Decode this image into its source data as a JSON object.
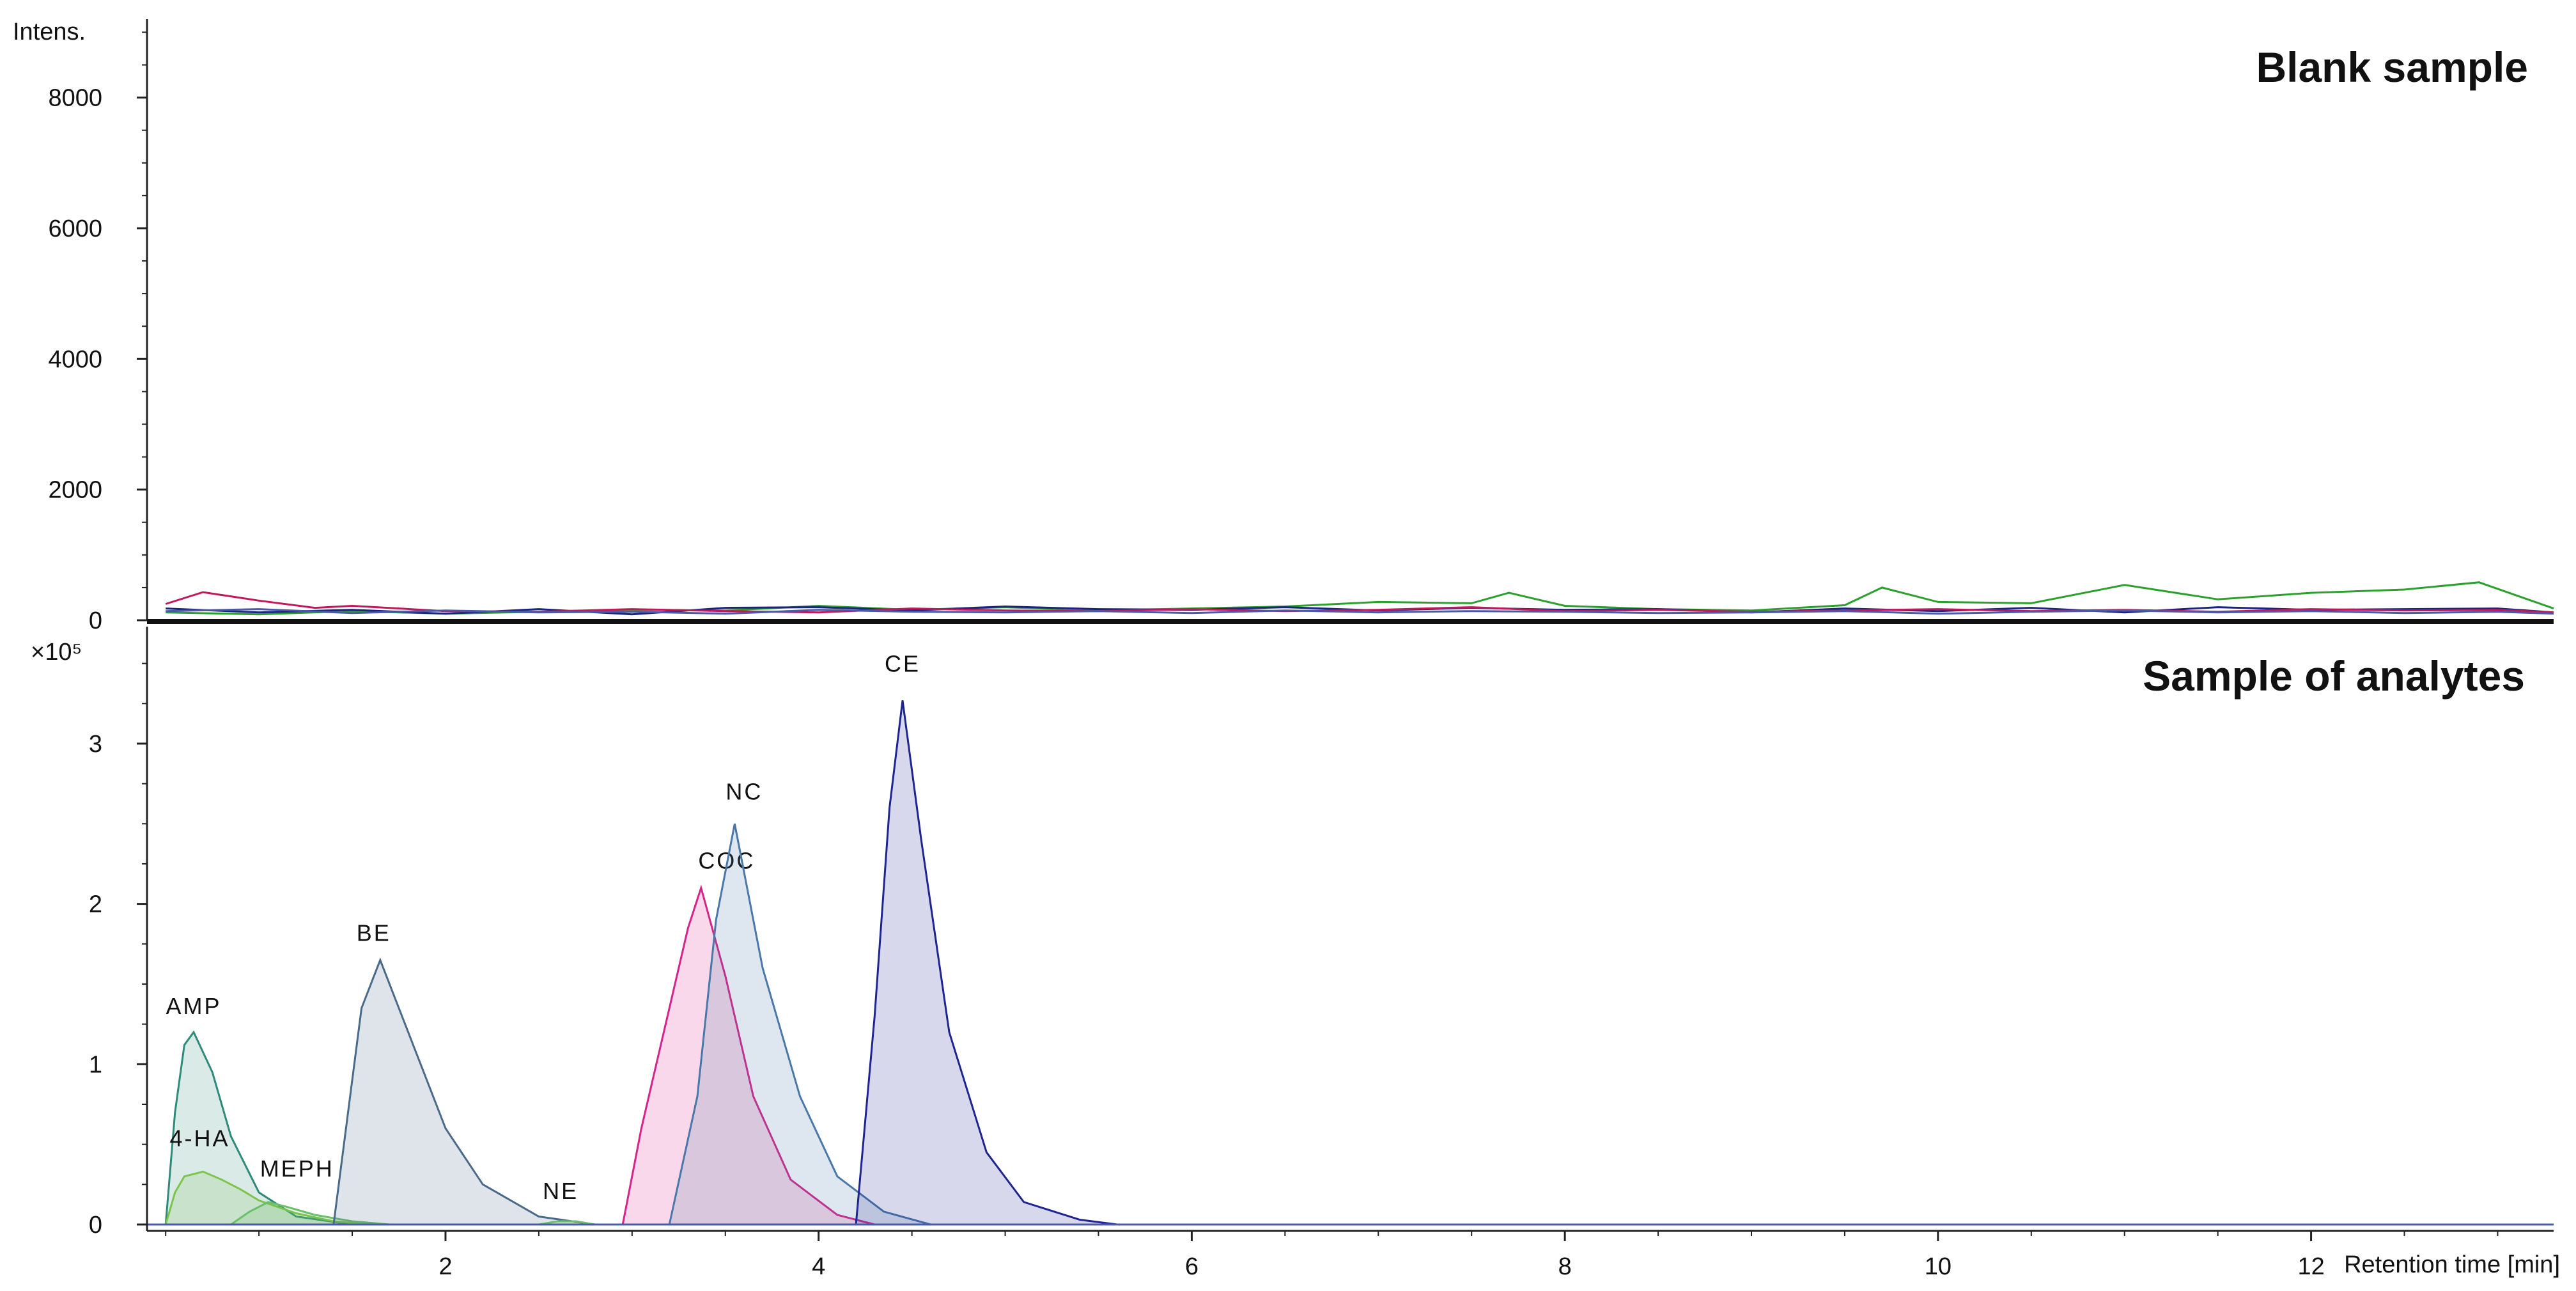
{
  "chart_data": [
    {
      "type": "line",
      "title": "Blank sample",
      "ylabel": "Intens.",
      "xlim": [
        0.4,
        13.3
      ],
      "ylim": [
        0,
        9200
      ],
      "yticks": [
        0,
        2000,
        4000,
        6000,
        8000
      ],
      "series": [
        {
          "color": "#2ca02c",
          "x": [
            0.5,
            1.0,
            1.5,
            2.0,
            2.5,
            3.0,
            3.5,
            4.0,
            4.5,
            5.0,
            5.5,
            6.0,
            6.5,
            7.0,
            7.5,
            7.7,
            8.0,
            8.5,
            9.0,
            9.5,
            9.7,
            10.0,
            10.5,
            11.0,
            11.5,
            12.0,
            12.5,
            12.9,
            13.3
          ],
          "y": [
            120,
            90,
            140,
            100,
            130,
            160,
            150,
            220,
            160,
            200,
            150,
            180,
            210,
            280,
            260,
            420,
            220,
            170,
            150,
            230,
            500,
            280,
            260,
            540,
            320,
            420,
            470,
            580,
            180
          ]
        },
        {
          "color": "#1a237e",
          "x": [
            0.5,
            1.0,
            1.5,
            2.0,
            2.5,
            3.0,
            3.5,
            4.0,
            4.5,
            5.0,
            5.5,
            6.0,
            6.5,
            7.0,
            7.5,
            8.0,
            8.5,
            9.0,
            9.5,
            10.0,
            10.5,
            11.0,
            11.5,
            12.0,
            12.5,
            13.0,
            13.3
          ],
          "y": [
            180,
            120,
            160,
            100,
            170,
            90,
            190,
            200,
            150,
            210,
            170,
            160,
            200,
            150,
            190,
            160,
            170,
            120,
            180,
            140,
            190,
            120,
            200,
            160,
            170,
            180,
            120
          ]
        },
        {
          "color": "#c2185b",
          "x": [
            0.5,
            0.7,
            1.0,
            1.3,
            1.5,
            2.0,
            2.5,
            3.0,
            3.5,
            4.0,
            4.5,
            5.0,
            5.5,
            6.0,
            6.5,
            7.0,
            7.5,
            8.0,
            8.5,
            9.0,
            9.5,
            10.0,
            10.5,
            11.0,
            11.5,
            12.0,
            12.5,
            13.0,
            13.3
          ],
          "y": [
            250,
            430,
            300,
            190,
            220,
            140,
            130,
            170,
            140,
            120,
            180,
            150,
            140,
            170,
            140,
            160,
            200,
            140,
            160,
            130,
            150,
            170,
            140,
            160,
            130,
            170,
            150,
            160,
            120
          ]
        },
        {
          "color": "#4a5aa8",
          "x": [
            0.5,
            1.0,
            1.5,
            2.0,
            2.5,
            3.0,
            3.5,
            4.0,
            4.5,
            5.0,
            5.5,
            6.0,
            6.5,
            7.0,
            7.5,
            8.0,
            8.5,
            9.0,
            9.5,
            10.0,
            10.5,
            11.0,
            11.5,
            12.0,
            12.5,
            13.0,
            13.3
          ],
          "y": [
            140,
            170,
            110,
            150,
            120,
            130,
            100,
            160,
            130,
            120,
            140,
            110,
            150,
            120,
            140,
            130,
            110,
            120,
            140,
            100,
            130,
            150,
            120,
            140,
            110,
            130,
            100
          ]
        }
      ]
    },
    {
      "type": "area",
      "title": "Sample of analytes",
      "ylabel": "×10⁵",
      "xlabel": "Retention time [min]",
      "xlim": [
        0.4,
        13.3
      ],
      "ylim": [
        0,
        3.65
      ],
      "xticks": [
        2,
        4,
        6,
        8,
        10,
        12
      ],
      "yticks": [
        0,
        1,
        2,
        3
      ],
      "series": [
        {
          "name": "AMP",
          "color": "#2e8b7a",
          "x": [
            0.5,
            0.55,
            0.6,
            0.65,
            0.75,
            0.85,
            1.0,
            1.2,
            1.5
          ],
          "y": [
            0,
            0.7,
            1.12,
            1.2,
            0.95,
            0.55,
            0.2,
            0.05,
            0
          ]
        },
        {
          "name": "4-HA",
          "color": "#7cc44c",
          "x": [
            0.5,
            0.55,
            0.6,
            0.7,
            0.8,
            0.9,
            1.0,
            1.2,
            1.4,
            1.6
          ],
          "y": [
            0,
            0.2,
            0.3,
            0.33,
            0.28,
            0.22,
            0.15,
            0.07,
            0.02,
            0
          ]
        },
        {
          "name": "MEPH",
          "color": "#6abf69",
          "x": [
            0.85,
            0.95,
            1.05,
            1.15,
            1.3,
            1.5,
            1.7
          ],
          "y": [
            0,
            0.08,
            0.14,
            0.11,
            0.06,
            0.02,
            0
          ]
        },
        {
          "name": "BE",
          "color": "#4a6a8a",
          "x": [
            1.4,
            1.5,
            1.55,
            1.65,
            1.8,
            2.0,
            2.2,
            2.5,
            2.8
          ],
          "y": [
            0,
            0.9,
            1.35,
            1.65,
            1.2,
            0.6,
            0.25,
            0.05,
            0
          ]
        },
        {
          "name": "NE",
          "color": "#6abf69",
          "x": [
            2.5,
            2.6,
            2.7,
            2.8
          ],
          "y": [
            0,
            0.02,
            0.02,
            0
          ]
        },
        {
          "name": "COC",
          "color": "#d6258a",
          "x": [
            2.95,
            3.05,
            3.2,
            3.3,
            3.37,
            3.5,
            3.65,
            3.85,
            4.1,
            4.3
          ],
          "y": [
            0,
            0.6,
            1.35,
            1.85,
            2.1,
            1.55,
            0.8,
            0.28,
            0.06,
            0
          ]
        },
        {
          "name": "NC",
          "color": "#4a78a8",
          "x": [
            3.2,
            3.35,
            3.45,
            3.55,
            3.7,
            3.9,
            4.1,
            4.35,
            4.6
          ],
          "y": [
            0,
            0.8,
            1.9,
            2.5,
            1.6,
            0.8,
            0.3,
            0.08,
            0
          ]
        },
        {
          "name": "CE",
          "color": "#1f2590",
          "x": [
            4.2,
            4.3,
            4.38,
            4.45,
            4.55,
            4.7,
            4.9,
            5.1,
            5.4,
            5.6
          ],
          "y": [
            0,
            1.3,
            2.6,
            3.27,
            2.4,
            1.2,
            0.45,
            0.14,
            0.03,
            0
          ]
        }
      ]
    }
  ],
  "icons": {
    "blank_legend_colors": [
      "#2ca02c",
      "#1a237e",
      "#c2185b",
      "#4a5aa8"
    ]
  }
}
